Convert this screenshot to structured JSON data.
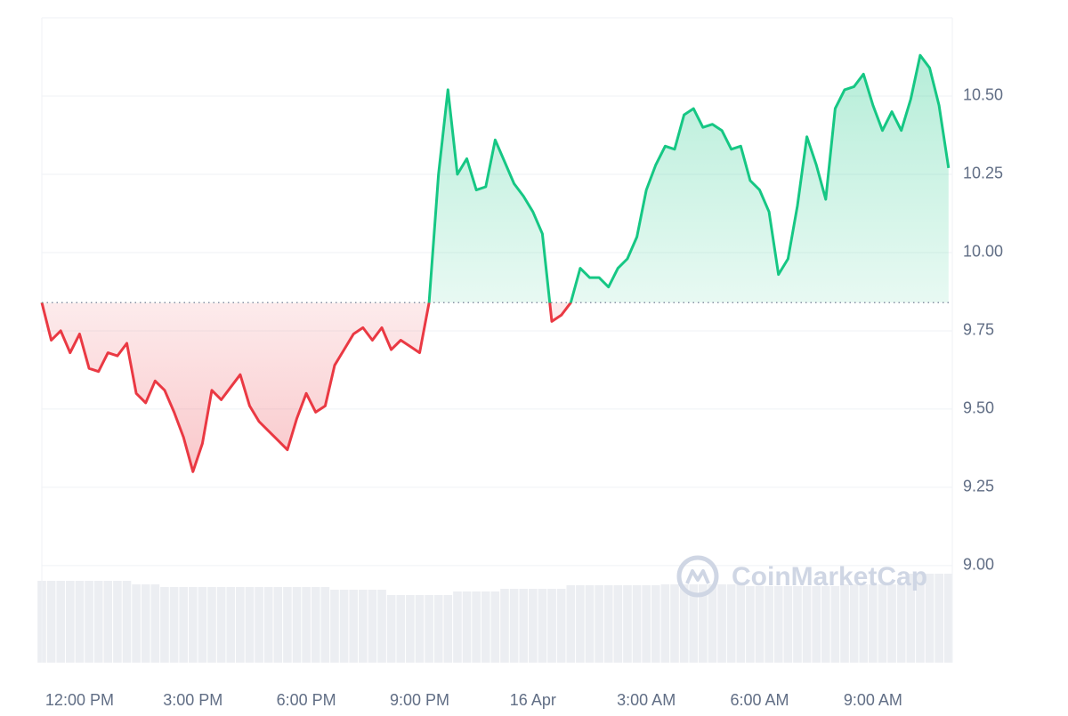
{
  "chart_data": {
    "type": "line",
    "watermark": "CoinMarketCap",
    "x": [
      -1,
      -0.75,
      -0.5,
      -0.25,
      0,
      0.25,
      0.5,
      0.75,
      1,
      1.25,
      1.5,
      1.75,
      2,
      2.25,
      2.5,
      2.75,
      3,
      3.25,
      3.5,
      3.75,
      4,
      4.25,
      4.5,
      4.75,
      5,
      5.25,
      5.5,
      5.75,
      6,
      6.25,
      6.5,
      6.75,
      7,
      7.25,
      7.5,
      7.75,
      8,
      8.25,
      8.5,
      8.75,
      9,
      9.25,
      9.5,
      9.75,
      10,
      10.25,
      10.5,
      10.75,
      11,
      11.25,
      11.5,
      11.75,
      12,
      12.25,
      12.5,
      12.75,
      13,
      13.25,
      13.5,
      13.75,
      14,
      14.25,
      14.5,
      14.75,
      15,
      15.25,
      15.5,
      15.75,
      16,
      16.25,
      16.5,
      16.75,
      17,
      17.25,
      17.5,
      17.75,
      18,
      18.25,
      18.5,
      18.75,
      19,
      19.25,
      19.5,
      19.75,
      20,
      20.25,
      20.5,
      20.75,
      21,
      21.25,
      21.5,
      21.75,
      22,
      22.25,
      22.5,
      22.75,
      23
    ],
    "values": [
      9.84,
      9.72,
      9.75,
      9.68,
      9.74,
      9.63,
      9.62,
      9.68,
      9.67,
      9.71,
      9.55,
      9.52,
      9.59,
      9.56,
      9.49,
      9.41,
      9.3,
      9.39,
      9.56,
      9.53,
      9.57,
      9.61,
      9.51,
      9.46,
      9.43,
      9.4,
      9.37,
      9.47,
      9.55,
      9.49,
      9.51,
      9.64,
      9.69,
      9.74,
      9.76,
      9.72,
      9.76,
      9.69,
      9.72,
      9.7,
      9.68,
      9.84,
      10.25,
      10.52,
      10.25,
      10.3,
      10.2,
      10.21,
      10.36,
      10.29,
      10.22,
      10.18,
      10.13,
      10.06,
      9.78,
      9.8,
      9.84,
      9.95,
      9.92,
      9.92,
      9.89,
      9.95,
      9.98,
      10.05,
      10.2,
      10.28,
      10.34,
      10.33,
      10.44,
      10.46,
      10.4,
      10.41,
      10.39,
      10.33,
      10.34,
      10.23,
      10.2,
      10.13,
      9.93,
      9.98,
      10.15,
      10.37,
      10.28,
      10.17,
      10.46,
      10.52,
      10.53,
      10.57,
      10.47,
      10.39,
      10.45,
      10.39,
      10.49,
      10.63,
      10.59,
      10.47,
      10.27
    ],
    "volume": [
      92,
      92,
      92,
      92,
      92,
      92,
      92,
      92,
      92,
      92,
      88,
      88,
      88,
      85,
      85,
      85,
      85,
      85,
      85,
      85,
      85,
      85,
      85,
      85,
      85,
      85,
      85,
      85,
      85,
      85,
      85,
      82,
      82,
      82,
      82,
      82,
      82,
      76,
      76,
      76,
      76,
      76,
      76,
      76,
      80,
      80,
      80,
      80,
      80,
      83,
      83,
      83,
      83,
      83,
      83,
      83,
      87,
      87,
      87,
      87,
      87,
      87,
      87,
      87,
      87,
      87,
      88,
      88,
      88,
      88,
      88,
      88,
      88,
      88,
      88,
      86,
      86,
      86,
      86,
      86,
      86,
      86,
      86,
      86,
      86,
      88,
      88,
      88,
      88,
      88,
      88,
      88,
      100,
      100,
      100,
      100,
      100
    ],
    "volume_ylim": [
      0,
      725
    ],
    "up_color": "#16c784",
    "down_color": "#ea3943",
    "volume_color": "#eceef2",
    "grid": true,
    "xlim": [
      -1,
      23.1
    ],
    "xticks": [
      {
        "value": 0,
        "label": "12:00 PM"
      },
      {
        "value": 3,
        "label": "3:00 PM"
      },
      {
        "value": 6,
        "label": "6:00 PM"
      },
      {
        "value": 9,
        "label": "9:00 PM"
      },
      {
        "value": 12,
        "label": "16 Apr"
      },
      {
        "value": 15,
        "label": "3:00 AM"
      },
      {
        "value": 18,
        "label": "6:00 AM"
      },
      {
        "value": 21,
        "label": "9:00 AM"
      }
    ],
    "ylim": [
      8.69,
      10.75
    ],
    "yticks": [
      {
        "value": 9,
        "label": "9.00"
      },
      9.25,
      {
        "value": 9.5,
        "label": "9.50"
      },
      9.75,
      {
        "value": 10,
        "label": "10.00"
      },
      10.25,
      {
        "value": 10.5,
        "label": "10.50"
      }
    ]
  }
}
